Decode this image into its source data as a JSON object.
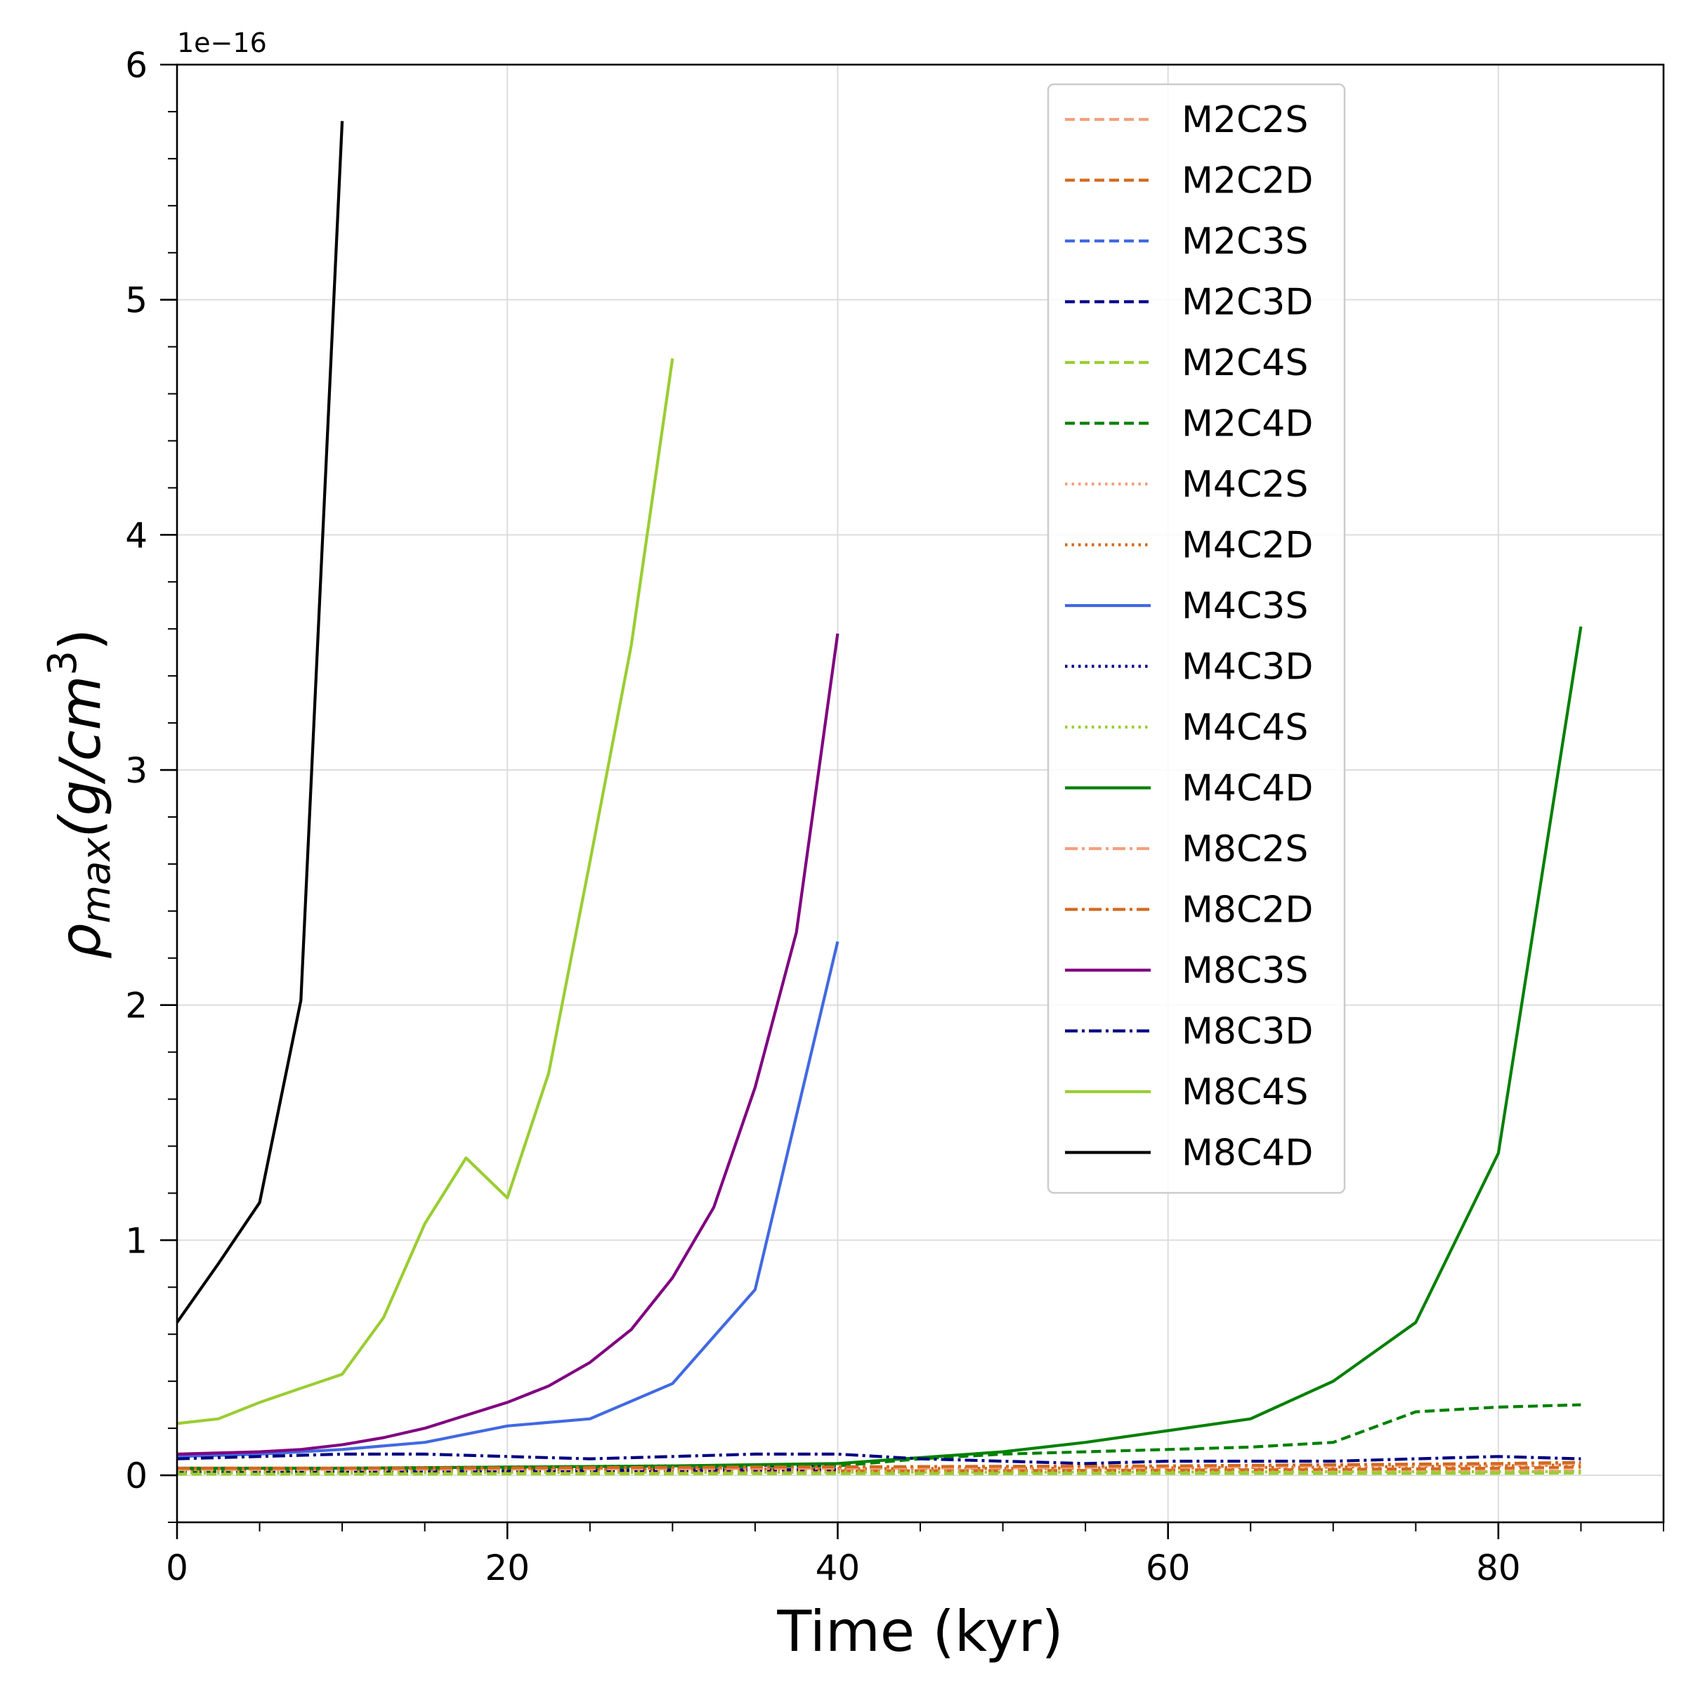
{
  "chart_data": {
    "type": "line",
    "xlabel": "Time (kyr)",
    "ylabel_base": "ρ",
    "ylabel_sub": "max",
    "ylabel_unit": "(g/cm",
    "ylabel_sup": "3",
    "ylabel_close": ")",
    "offset_text": "1e−16",
    "y_scale_factor": 1e-16,
    "xlim": [
      0,
      90
    ],
    "ylim": [
      -0.2,
      6
    ],
    "xticks": [
      0,
      20,
      40,
      60,
      80
    ],
    "xtick_labels": [
      "0",
      "20",
      "40",
      "60",
      "80"
    ],
    "yticks": [
      0,
      1,
      2,
      3,
      4,
      5,
      6
    ],
    "ytick_labels": [
      "0",
      "1",
      "2",
      "3",
      "4",
      "5",
      "6"
    ],
    "x_minor_step": 5,
    "y_minor_step": 0.2,
    "grid": true,
    "legend_position": "upper right",
    "series": [
      {
        "name": "M2C2S",
        "color": "#f4a07e",
        "style": "dashed",
        "x": [
          0,
          10,
          20,
          30,
          40,
          50,
          60,
          70,
          80,
          85
        ],
        "y": [
          0.01,
          0.01,
          0.01,
          0.012,
          0.012,
          0.013,
          0.015,
          0.015,
          0.018,
          0.02
        ]
      },
      {
        "name": "M2C2D",
        "color": "#d2691e",
        "style": "dashed",
        "x": [
          0,
          10,
          20,
          30,
          40,
          50,
          60,
          70,
          80,
          85
        ],
        "y": [
          0.015,
          0.016,
          0.017,
          0.018,
          0.019,
          0.02,
          0.022,
          0.025,
          0.03,
          0.035
        ]
      },
      {
        "name": "M2C3S",
        "color": "#4169e1",
        "style": "dashed",
        "x": [
          0,
          10,
          20,
          30,
          40
        ],
        "y": [
          0.02,
          0.025,
          0.03,
          0.035,
          0.04
        ]
      },
      {
        "name": "M2C3D",
        "color": "#00008b",
        "style": "dashed",
        "x": [
          0,
          10,
          20,
          30,
          40
        ],
        "y": [
          0.015,
          0.018,
          0.02,
          0.022,
          0.025
        ]
      },
      {
        "name": "M2C4S",
        "color": "#9acd32",
        "style": "dashed",
        "x": [
          0,
          10,
          20,
          30,
          40,
          50,
          60,
          70,
          80,
          85
        ],
        "y": [
          0.005,
          0.005,
          0.006,
          0.006,
          0.007,
          0.007,
          0.008,
          0.008,
          0.009,
          0.01
        ]
      },
      {
        "name": "M2C4D",
        "color": "#008000",
        "style": "dashed",
        "x": [
          0,
          10,
          20,
          30,
          40,
          45,
          50,
          55,
          60,
          65,
          70,
          75,
          80,
          85
        ],
        "y": [
          0.02,
          0.025,
          0.03,
          0.035,
          0.04,
          0.07,
          0.09,
          0.1,
          0.11,
          0.12,
          0.14,
          0.27,
          0.29,
          0.3
        ]
      },
      {
        "name": "M4C2S",
        "color": "#f4a07e",
        "style": "dotted",
        "x": [
          0,
          10,
          20,
          30,
          40,
          50,
          60,
          70,
          80,
          85
        ],
        "y": [
          0.02,
          0.02,
          0.02,
          0.022,
          0.025,
          0.028,
          0.03,
          0.035,
          0.04,
          0.045
        ]
      },
      {
        "name": "M4C2D",
        "color": "#d2691e",
        "style": "dotted",
        "x": [
          0,
          10,
          20,
          30,
          40,
          50,
          60,
          70,
          80,
          85
        ],
        "y": [
          0.025,
          0.025,
          0.026,
          0.027,
          0.028,
          0.03,
          0.032,
          0.035,
          0.04,
          0.045
        ]
      },
      {
        "name": "M4C3S",
        "color": "#4169e1",
        "style": "solid",
        "x": [
          0,
          5,
          10,
          15,
          20,
          25,
          30,
          35,
          40
        ],
        "y": [
          0.08,
          0.09,
          0.11,
          0.14,
          0.21,
          0.24,
          0.39,
          0.79,
          2.27
        ]
      },
      {
        "name": "M4C3D",
        "color": "#00008b",
        "style": "dotted",
        "x": [
          0,
          10,
          20,
          30,
          40
        ],
        "y": [
          0.03,
          0.03,
          0.035,
          0.04,
          0.045
        ]
      },
      {
        "name": "M4C4S",
        "color": "#9acd32",
        "style": "dotted",
        "x": [
          0,
          10,
          20,
          30,
          40,
          50,
          60,
          70,
          80,
          85
        ],
        "y": [
          0.01,
          0.01,
          0.012,
          0.012,
          0.013,
          0.013,
          0.014,
          0.015,
          0.015,
          0.016
        ]
      },
      {
        "name": "M4C4D",
        "color": "#008000",
        "style": "solid",
        "x": [
          0,
          10,
          20,
          30,
          40,
          50,
          55,
          60,
          65,
          70,
          75,
          80,
          85
        ],
        "y": [
          0.03,
          0.03,
          0.035,
          0.04,
          0.05,
          0.1,
          0.14,
          0.19,
          0.24,
          0.4,
          0.65,
          1.37,
          3.61
        ]
      },
      {
        "name": "M8C2S",
        "color": "#f4a07e",
        "style": "dashdot",
        "x": [
          0,
          10,
          20,
          30,
          40,
          50,
          60,
          70,
          80,
          85
        ],
        "y": [
          0.025,
          0.025,
          0.027,
          0.028,
          0.03,
          0.032,
          0.035,
          0.04,
          0.045,
          0.05
        ]
      },
      {
        "name": "M8C2D",
        "color": "#d2691e",
        "style": "dashdot",
        "x": [
          0,
          10,
          20,
          30,
          40,
          50,
          60,
          70,
          80,
          85
        ],
        "y": [
          0.03,
          0.03,
          0.032,
          0.034,
          0.036,
          0.038,
          0.04,
          0.045,
          0.05,
          0.055
        ]
      },
      {
        "name": "M8C3S",
        "color": "#800080",
        "style": "solid",
        "x": [
          0,
          5,
          7.5,
          10,
          12.5,
          15,
          20,
          22.5,
          25,
          27.5,
          30,
          32.5,
          35,
          37.5,
          40
        ],
        "y": [
          0.09,
          0.1,
          0.11,
          0.13,
          0.16,
          0.2,
          0.31,
          0.38,
          0.48,
          0.62,
          0.84,
          1.14,
          1.65,
          2.31,
          3.58
        ]
      },
      {
        "name": "M8C3D",
        "color": "#000080",
        "style": "dashdot",
        "x": [
          0,
          5,
          10,
          15,
          20,
          25,
          30,
          35,
          40,
          45,
          50,
          55,
          60,
          65,
          70,
          75,
          80,
          85
        ],
        "y": [
          0.07,
          0.08,
          0.09,
          0.09,
          0.08,
          0.07,
          0.08,
          0.09,
          0.09,
          0.07,
          0.06,
          0.05,
          0.06,
          0.06,
          0.06,
          0.07,
          0.08,
          0.07
        ]
      },
      {
        "name": "M8C4S",
        "color": "#9acd32",
        "style": "solid",
        "x": [
          0,
          2.5,
          5,
          7.5,
          10,
          12.5,
          15,
          17.5,
          20,
          22.5,
          25,
          27.5,
          30
        ],
        "y": [
          0.22,
          0.24,
          0.31,
          0.37,
          0.43,
          0.67,
          1.07,
          1.35,
          1.18,
          1.71,
          2.61,
          3.53,
          4.75
        ]
      },
      {
        "name": "M8C4D",
        "color": "#000000",
        "style": "solid",
        "x": [
          0,
          2.5,
          5,
          7.5,
          10
        ],
        "y": [
          0.65,
          0.9,
          1.16,
          2.02,
          5.76
        ]
      }
    ]
  }
}
